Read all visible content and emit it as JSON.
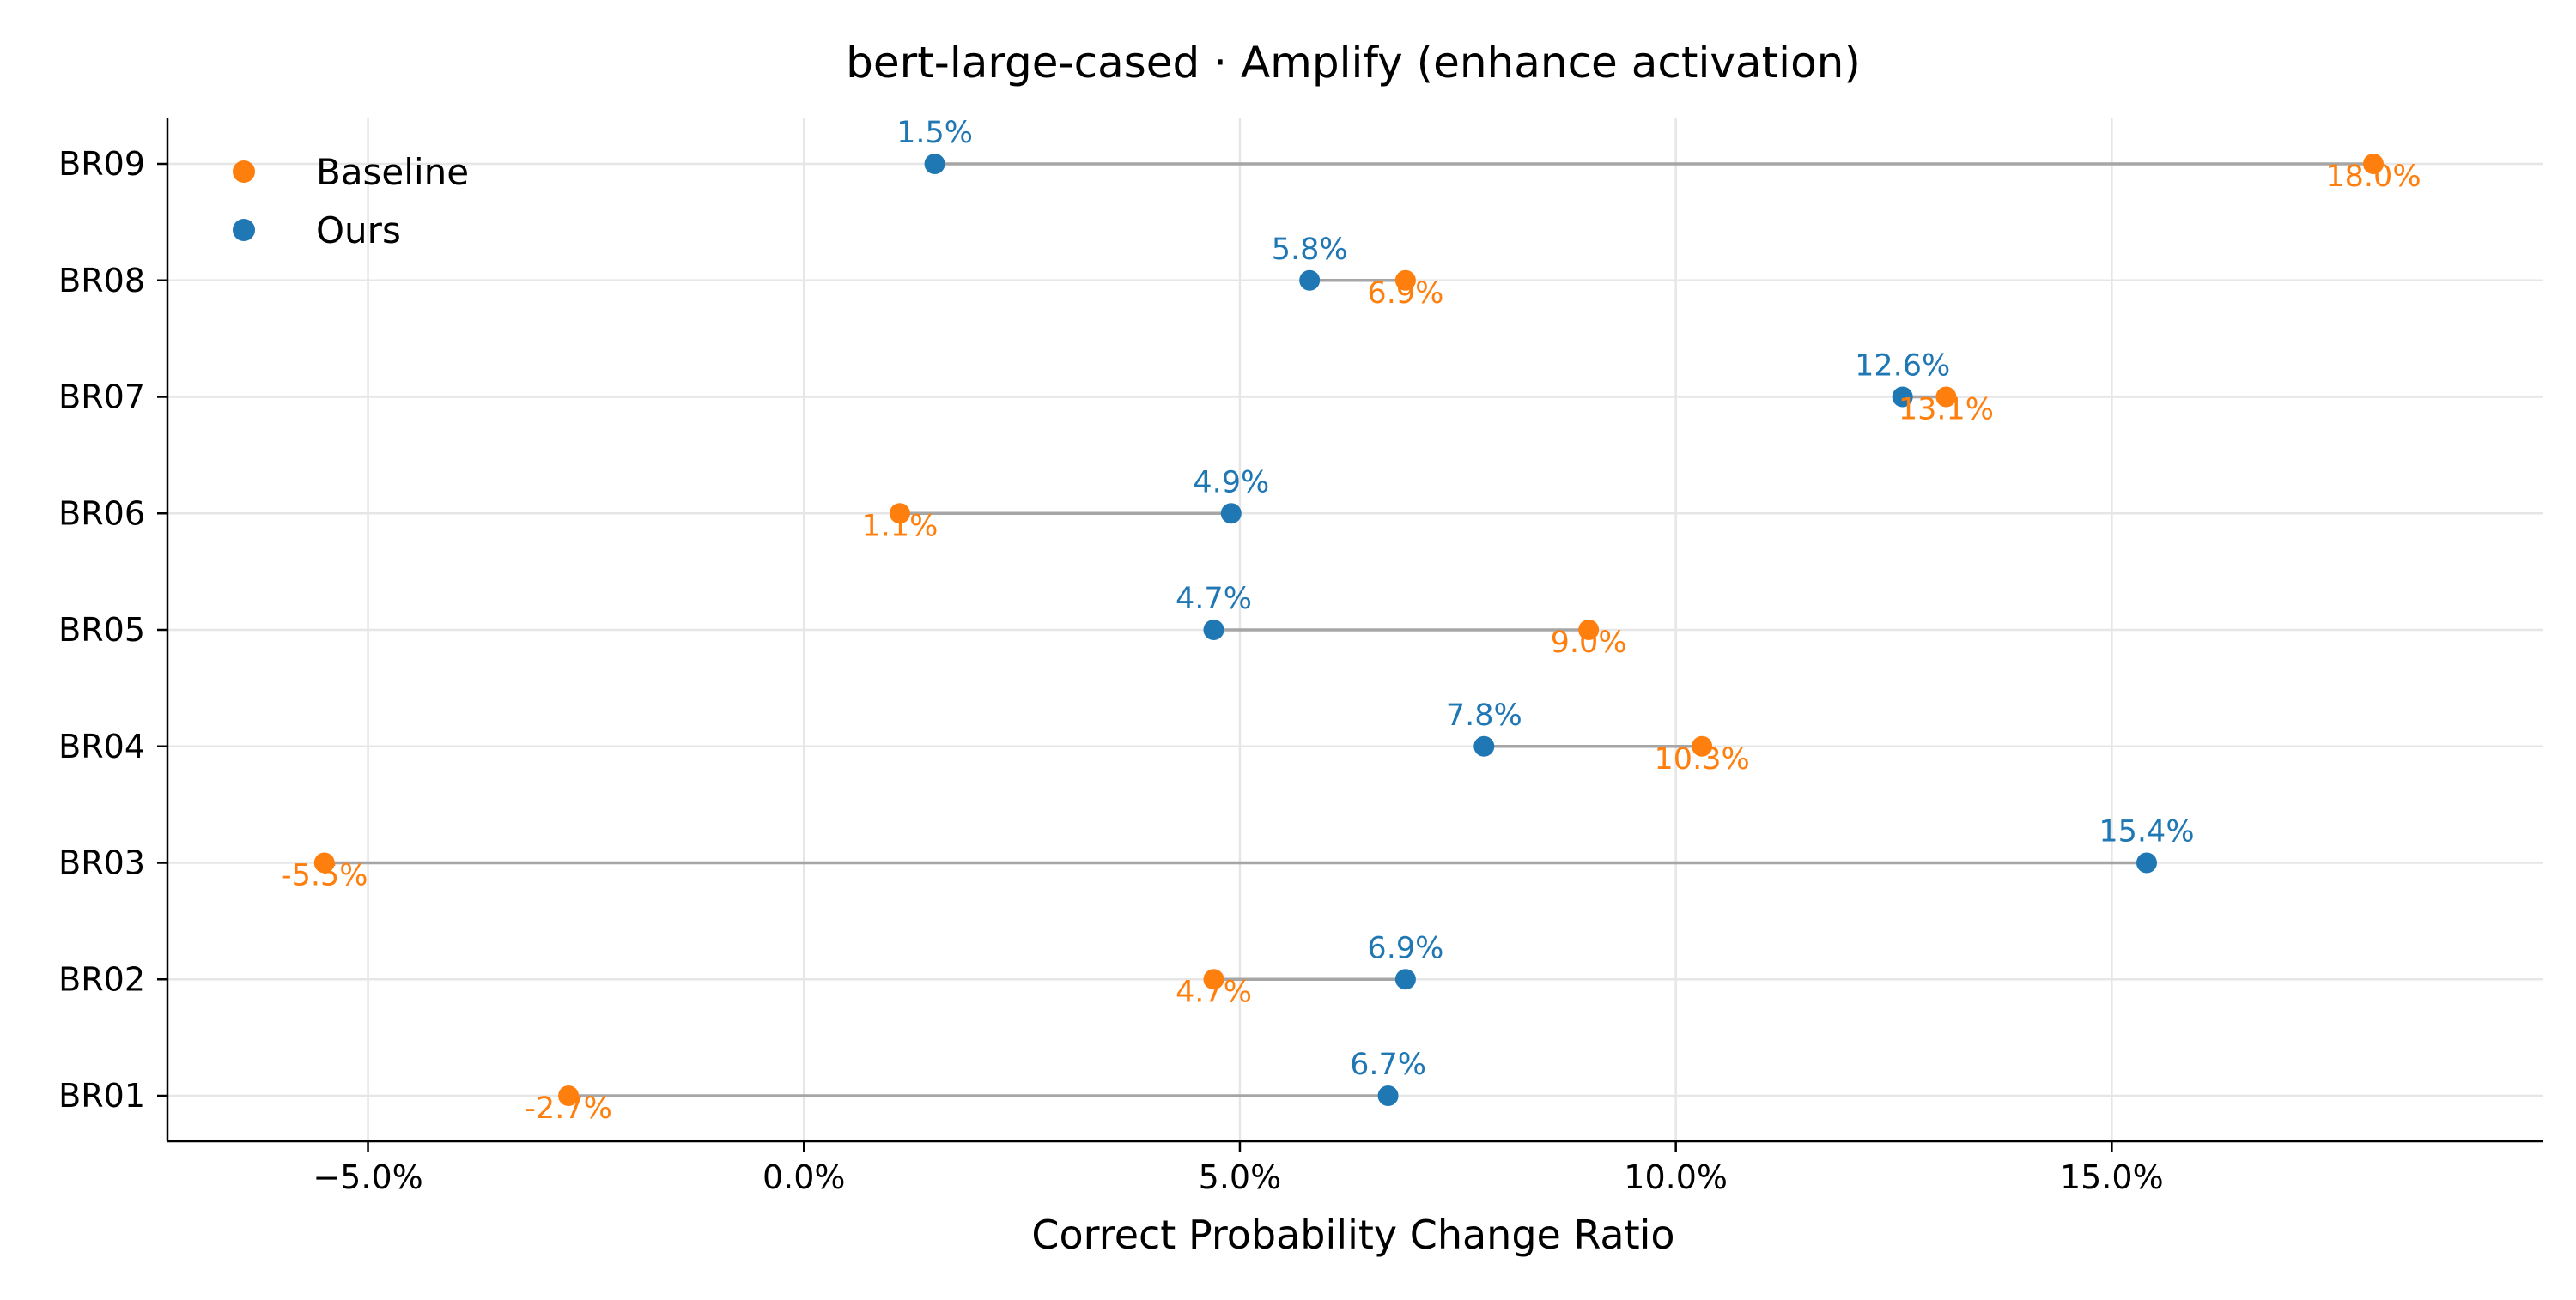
{
  "chart_data": {
    "type": "dumbbell",
    "title": "bert-large-cased · Amplify (enhance activation)",
    "xlabel": "Correct Probability Change Ratio",
    "ylabel": "",
    "categories": [
      "BR01",
      "BR02",
      "BR03",
      "BR04",
      "BR05",
      "BR06",
      "BR07",
      "BR08",
      "BR09"
    ],
    "xlim": [
      -7.3,
      19.95
    ],
    "xticks": [
      -5,
      0,
      5,
      10,
      15
    ],
    "xtick_labels": [
      "−5.0%",
      "0.0%",
      "5.0%",
      "10.0%",
      "15.0%"
    ],
    "grid": true,
    "legend_position": "top-left",
    "series": [
      {
        "name": "Baseline",
        "color": "#ff7f0e",
        "values": [
          -2.7,
          4.7,
          -5.5,
          10.3,
          9.0,
          1.1,
          13.1,
          6.9,
          18.0
        ],
        "labels": [
          "-2.7%",
          "4.7%",
          "-5.5%",
          "10.3%",
          "9.0%",
          "1.1%",
          "13.1%",
          "6.9%",
          "18.0%"
        ]
      },
      {
        "name": "Ours",
        "color": "#1f77b4",
        "values": [
          6.7,
          6.9,
          15.4,
          7.8,
          4.7,
          4.9,
          12.6,
          5.8,
          1.5
        ],
        "labels": [
          "6.7%",
          "6.9%",
          "15.4%",
          "7.8%",
          "4.7%",
          "4.9%",
          "12.6%",
          "5.8%",
          "1.5%"
        ]
      }
    ]
  }
}
